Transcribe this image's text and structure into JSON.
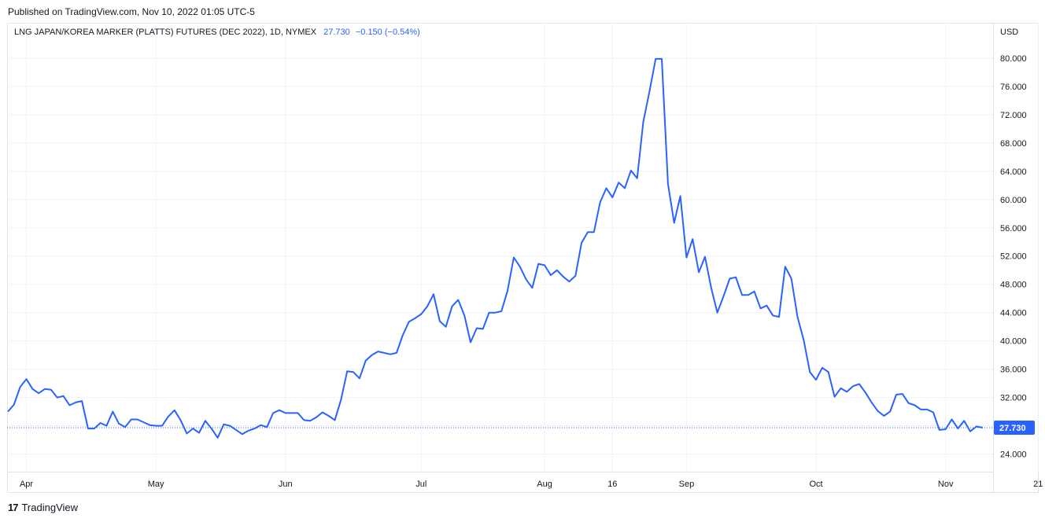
{
  "header": {
    "published": "Published on TradingView.com, Nov 10, 2022 01:05 UTC-5"
  },
  "legend": {
    "symbol": "LNG JAPAN/KOREA MARKER (PLATTS) FUTURES (DEC 2022), 1D, NYMEX",
    "last": "27.730",
    "change": "−0.150 (−0.54%)"
  },
  "price_axis": {
    "currency": "USD"
  },
  "footer": {
    "brand_mark": "17",
    "brand": "TradingView"
  },
  "colors": {
    "line": "#2962ff",
    "grid": "#f0f3fa",
    "last_price": "#2962ff"
  },
  "chart_data": {
    "type": "line",
    "ylim": [
      21.5,
      85.0
    ],
    "y_ticks": [
      "24.000",
      "28.000",
      "32.000",
      "36.000",
      "40.000",
      "44.000",
      "48.000",
      "52.000",
      "56.000",
      "60.000",
      "64.000",
      "68.000",
      "72.000",
      "76.000",
      "80.000"
    ],
    "x_tick_labels": [
      {
        "label": "Apr",
        "index": 3
      },
      {
        "label": "May",
        "index": 24
      },
      {
        "label": "Jun",
        "index": 45
      },
      {
        "label": "Jul",
        "index": 67
      },
      {
        "label": "Aug",
        "index": 87
      },
      {
        "label": "16",
        "index": 98
      },
      {
        "label": "Sep",
        "index": 110
      },
      {
        "label": "Oct",
        "index": 131
      },
      {
        "label": "Nov",
        "index": 152
      },
      {
        "label": "21",
        "index": 167
      }
    ],
    "last_value": 27.73,
    "series": [
      {
        "values": [
          30.0,
          31.0,
          33.5,
          34.6,
          33.2,
          32.6,
          33.2,
          33.1,
          32.0,
          32.2,
          30.9,
          31.3,
          31.5,
          27.6,
          27.6,
          28.4,
          28.0,
          30.0,
          28.3,
          27.8,
          28.9,
          28.9,
          28.5,
          28.1,
          28.0,
          28.0,
          29.3,
          30.2,
          28.8,
          26.9,
          27.6,
          27.0,
          28.7,
          27.6,
          26.3,
          28.2,
          28.0,
          27.4,
          26.8,
          27.3,
          27.6,
          28.1,
          27.8,
          29.8,
          30.2,
          29.8,
          29.8,
          29.8,
          28.8,
          28.7,
          29.2,
          29.9,
          29.4,
          28.8,
          31.7,
          35.7,
          35.6,
          34.7,
          37.2,
          38.0,
          38.5,
          38.3,
          38.1,
          38.3,
          40.8,
          42.7,
          43.2,
          43.8,
          44.9,
          46.6,
          42.8,
          42.0,
          44.9,
          45.8,
          43.6,
          39.8,
          41.8,
          41.7,
          44.0,
          44.0,
          44.2,
          47.1,
          51.8,
          50.5,
          48.7,
          47.5,
          50.9,
          50.7,
          49.3,
          50.0,
          49.1,
          48.4,
          49.2,
          53.9,
          55.4,
          55.4,
          59.6,
          61.6,
          60.3,
          62.4,
          61.6,
          64.1,
          63.0,
          71.0,
          75.3,
          79.9,
          79.9,
          62.2,
          56.7,
          60.5,
          51.8,
          54.4,
          49.7,
          51.9,
          47.5,
          44.0,
          46.3,
          48.8,
          49.0,
          46.5,
          46.5,
          47.0,
          44.6,
          45.0,
          43.6,
          43.4,
          50.5,
          48.8,
          43.4,
          40.1,
          35.6,
          34.5,
          36.2,
          35.6,
          32.1,
          33.3,
          32.8,
          33.6,
          33.9,
          32.7,
          31.3,
          30.1,
          29.4,
          30.0,
          32.4,
          32.5,
          31.2,
          30.9,
          30.3,
          30.3,
          29.9,
          27.4,
          27.5,
          28.9,
          27.6,
          28.7,
          27.2,
          27.9,
          27.73
        ]
      }
    ]
  }
}
